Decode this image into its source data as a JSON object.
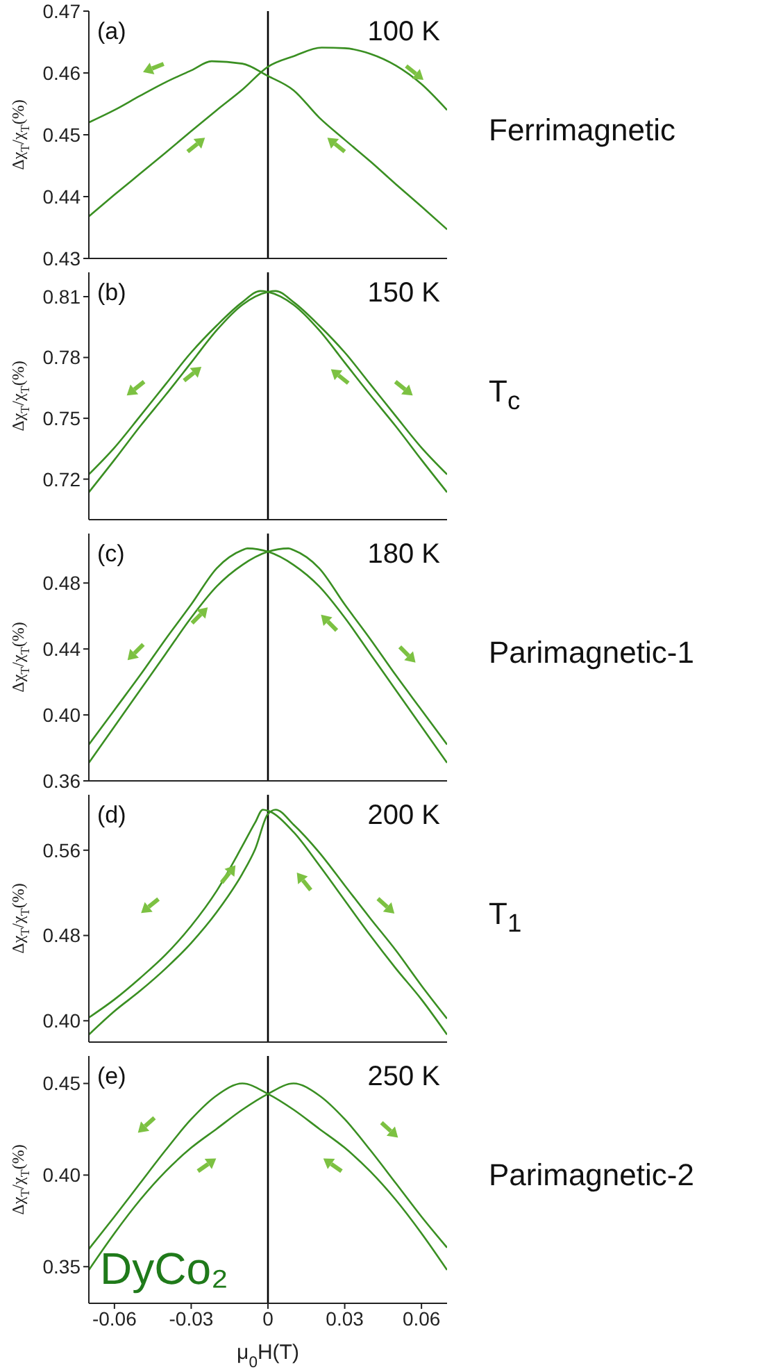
{
  "chart_data": [
    {
      "type": "line",
      "ylabel": "Δχ$_{T}$/χ$_{T}$(%)",
      "xlim": [
        -0.07,
        0.07
      ],
      "xticks": [
        -0.06,
        -0.03,
        0,
        0.03,
        0.06
      ],
      "ylim": [
        0.43,
        0.47
      ],
      "yticks": [
        0.43,
        0.44,
        0.45,
        0.46,
        0.47
      ],
      "tick_labels": "y",
      "annotations": [
        "(a)",
        "100 K",
        "Ferrimagnetic"
      ],
      "ref_lines": [
        {
          "axis": "x",
          "value": 0,
          "color": "#000000"
        }
      ],
      "series": [
        {
          "color": "#3a8f22",
          "x": [
            -0.07,
            -0.06,
            -0.05,
            -0.04,
            -0.03,
            -0.022,
            -0.01,
            0,
            0.01,
            0.02,
            0.03,
            0.04,
            0.05,
            0.06,
            0.07
          ],
          "values": [
            0.452,
            0.454,
            0.4563,
            0.4585,
            0.4604,
            0.4619,
            0.4615,
            0.4595,
            0.4572,
            0.4528,
            0.4492,
            0.4457,
            0.442,
            0.4384,
            0.4347
          ]
        },
        {
          "color": "#3a8f22",
          "x": [
            -0.07,
            -0.06,
            -0.05,
            -0.04,
            -0.03,
            -0.02,
            -0.01,
            0,
            0.01,
            0.021,
            0.03,
            0.04,
            0.05,
            0.06,
            0.07
          ],
          "values": [
            0.4368,
            0.4403,
            0.4437,
            0.4471,
            0.4506,
            0.454,
            0.4573,
            0.461,
            0.4627,
            0.4641,
            0.464,
            0.4631,
            0.4612,
            0.4582,
            0.454
          ]
        }
      ]
    },
    {
      "type": "line",
      "ylabel": "Δχ$_{T}$/χ$_{T}$(%)",
      "xlim": [
        -0.07,
        0.07
      ],
      "xticks": [
        -0.06,
        -0.03,
        0,
        0.03,
        0.06
      ],
      "ylim": [
        0.7,
        0.822
      ],
      "yticks": [
        0.72,
        0.75,
        0.78,
        0.81
      ],
      "tick_labels": "y",
      "annotations": [
        "(b)",
        "150 K",
        "T$_{c}$"
      ],
      "ref_lines": [
        {
          "axis": "x",
          "value": 0,
          "color": "#000000"
        }
      ],
      "series": [
        {
          "color": "#3a8f22",
          "x": [
            -0.07,
            -0.06,
            -0.05,
            -0.04,
            -0.03,
            -0.02,
            -0.01,
            -0.003,
            0,
            0.01,
            0.02,
            0.03,
            0.04,
            0.05,
            0.06,
            0.07
          ],
          "values": [
            0.7223,
            0.7355,
            0.751,
            0.7668,
            0.7825,
            0.7958,
            0.8073,
            0.8128,
            0.8123,
            0.806,
            0.7935,
            0.7775,
            0.7615,
            0.746,
            0.7295,
            0.7135
          ]
        },
        {
          "color": "#3a8f22",
          "x": [
            -0.07,
            -0.06,
            -0.05,
            -0.04,
            -0.03,
            -0.02,
            -0.01,
            0,
            0.003,
            0.01,
            0.02,
            0.03,
            0.04,
            0.05,
            0.06,
            0.07
          ],
          "values": [
            0.7135,
            0.7295,
            0.746,
            0.7615,
            0.7775,
            0.7935,
            0.806,
            0.8123,
            0.8128,
            0.8073,
            0.7958,
            0.7825,
            0.7668,
            0.751,
            0.7355,
            0.7223
          ]
        }
      ]
    },
    {
      "type": "line",
      "ylabel": "Δχ$_{T}$/χ$_{T}$(%)",
      "xlim": [
        -0.07,
        0.07
      ],
      "xticks": [
        -0.06,
        -0.03,
        0,
        0.03,
        0.06
      ],
      "ylim": [
        0.36,
        0.51
      ],
      "yticks": [
        {
          "value": 0.36,
          "label": "0.36"
        },
        {
          "value": 0.4,
          "label": "0.40"
        },
        {
          "value": 0.44,
          "label": "0.44"
        },
        {
          "value": 0.48,
          "label": "0.48"
        }
      ],
      "tick_labels": "y",
      "annotations": [
        "(c)",
        "180 K",
        "Parimagnetic-1"
      ],
      "ref_lines": [
        {
          "axis": "x",
          "value": 0,
          "color": "#000000"
        }
      ],
      "series": [
        {
          "color": "#3a8f22",
          "x": [
            -0.07,
            -0.06,
            -0.05,
            -0.04,
            -0.03,
            -0.02,
            -0.01,
            -0.008,
            0,
            0.01,
            0.02,
            0.03,
            0.04,
            0.05,
            0.06,
            0.07
          ],
          "values": [
            0.382,
            0.403,
            0.424,
            0.446,
            0.467,
            0.489,
            0.5,
            0.501,
            0.499,
            0.491,
            0.478,
            0.459,
            0.437,
            0.415,
            0.393,
            0.371
          ]
        },
        {
          "color": "#3a8f22",
          "x": [
            -0.07,
            -0.06,
            -0.05,
            -0.04,
            -0.03,
            -0.02,
            -0.01,
            0,
            0.008,
            0.01,
            0.02,
            0.03,
            0.04,
            0.05,
            0.06,
            0.07
          ],
          "values": [
            0.371,
            0.393,
            0.415,
            0.437,
            0.459,
            0.478,
            0.491,
            0.499,
            0.501,
            0.5,
            0.489,
            0.467,
            0.446,
            0.424,
            0.403,
            0.382
          ]
        }
      ]
    },
    {
      "type": "line",
      "ylabel": "Δχ$_{T}$/χ$_{T}$(%)",
      "xlim": [
        -0.07,
        0.07
      ],
      "xticks": [
        -0.06,
        -0.03,
        0,
        0.03,
        0.06
      ],
      "ylim": [
        0.38,
        0.612
      ],
      "yticks": [
        {
          "value": 0.4,
          "label": "0.40"
        },
        0.48,
        0.56
      ],
      "tick_labels": "y",
      "annotations": [
        "(d)",
        "200 K",
        "T$_{1}$"
      ],
      "ref_lines": [
        {
          "axis": "x",
          "value": 0,
          "color": "#000000"
        }
      ],
      "series": [
        {
          "color": "#3a8f22",
          "x": [
            -0.07,
            -0.06,
            -0.05,
            -0.04,
            -0.03,
            -0.02,
            -0.01,
            -0.005,
            -0.002,
            0,
            0.01,
            0.02,
            0.03,
            0.04,
            0.05,
            0.06,
            0.07
          ],
          "values": [
            0.403,
            0.42,
            0.44,
            0.462,
            0.489,
            0.522,
            0.564,
            0.586,
            0.598,
            0.597,
            0.577,
            0.546,
            0.513,
            0.48,
            0.449,
            0.42,
            0.387
          ]
        },
        {
          "color": "#3a8f22",
          "x": [
            -0.07,
            -0.06,
            -0.05,
            -0.04,
            -0.03,
            -0.02,
            -0.01,
            -0.005,
            0,
            0.003,
            0.01,
            0.02,
            0.03,
            0.04,
            0.05,
            0.06,
            0.07
          ],
          "values": [
            0.387,
            0.409,
            0.428,
            0.449,
            0.473,
            0.502,
            0.538,
            0.561,
            0.594,
            0.598,
            0.584,
            0.558,
            0.527,
            0.496,
            0.466,
            0.433,
            0.402
          ]
        }
      ]
    },
    {
      "type": "line",
      "xlabel": "μ$_{0}$H(T)",
      "ylabel": "Δχ$_{T}$/χ$_{T}$(%)",
      "xlim": [
        -0.07,
        0.07
      ],
      "xticks": [
        -0.06,
        -0.03,
        0,
        0.03,
        0.06
      ],
      "ylim": [
        0.33,
        0.465
      ],
      "yticks": [
        0.35,
        {
          "value": 0.4,
          "label": "0.40"
        },
        0.45
      ],
      "annotations": [
        "(e)",
        "250 K",
        "Parimagnetic-2",
        "DyCo₂"
      ],
      "ref_lines": [
        {
          "axis": "x",
          "value": 0,
          "color": "#000000"
        }
      ],
      "series": [
        {
          "color": "#3a8f22",
          "x": [
            -0.07,
            -0.06,
            -0.05,
            -0.04,
            -0.03,
            -0.02,
            -0.01,
            0,
            0.01,
            0.02,
            0.03,
            0.04,
            0.05,
            0.06,
            0.07
          ],
          "values": [
            0.3596,
            0.3773,
            0.3955,
            0.4136,
            0.4305,
            0.4435,
            0.45,
            0.4443,
            0.4357,
            0.4253,
            0.4149,
            0.402,
            0.3864,
            0.3682,
            0.3482
          ]
        },
        {
          "color": "#3a8f22",
          "x": [
            -0.07,
            -0.06,
            -0.05,
            -0.04,
            -0.03,
            -0.02,
            -0.01,
            0,
            0.01,
            0.02,
            0.03,
            0.04,
            0.05,
            0.06,
            0.07
          ],
          "values": [
            0.3482,
            0.3682,
            0.3864,
            0.402,
            0.4149,
            0.4253,
            0.4357,
            0.4443,
            0.45,
            0.4435,
            0.4305,
            0.4136,
            0.3955,
            0.3773,
            0.3604
          ]
        }
      ]
    }
  ]
}
